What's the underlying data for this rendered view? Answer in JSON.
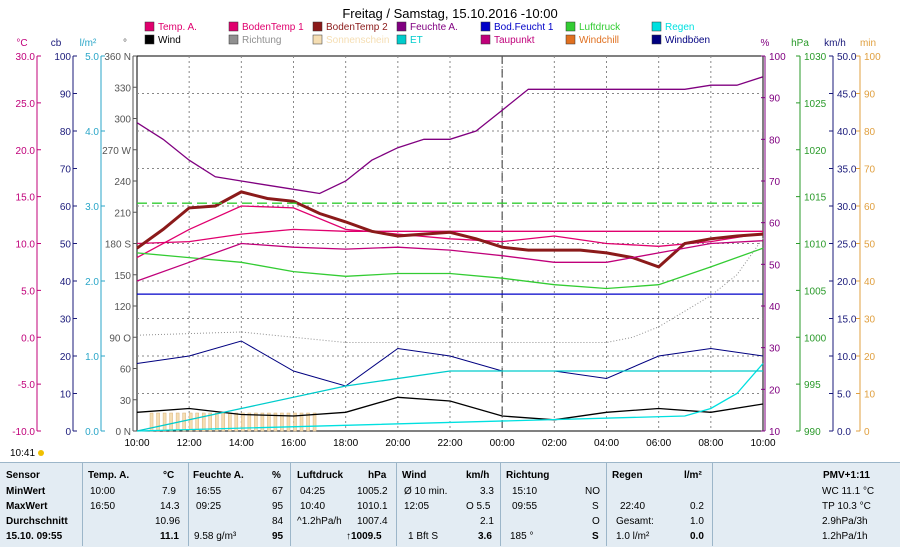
{
  "chart_data": {
    "type": "line",
    "title": "Freitag / Samstag, 15.10.2016  -10:00",
    "x_ticks": [
      "10:00",
      "12:00",
      "14:00",
      "16:00",
      "18:00",
      "20:00",
      "22:00",
      "00:00",
      "02:00",
      "04:00",
      "06:00",
      "08:00",
      "10:00"
    ],
    "left_axes": [
      {
        "unit": "°C",
        "color": "#c0007a",
        "ticks": [
          "30.0",
          "25.0",
          "20.0",
          "15.0",
          "10.0",
          "5.0",
          "0.0",
          "-5.0",
          "-10.0"
        ]
      },
      {
        "unit": "cb",
        "color": "#1a1a7a",
        "ticks": [
          "100",
          "90",
          "80",
          "70",
          "60",
          "50",
          "40",
          "30",
          "20",
          "10",
          "0"
        ]
      },
      {
        "unit": "l/m²",
        "color": "#2aa6c8",
        "ticks": [
          "5.0",
          "4.0",
          "3.0",
          "2.0",
          "1.0",
          "0.0"
        ]
      },
      {
        "unit": "°",
        "color": "#555555",
        "ticks": [
          "360 N",
          "330",
          "300",
          "270 W",
          "240",
          "210",
          "180 S",
          "150",
          "120",
          "90 O",
          "60",
          "30",
          "0 N"
        ]
      }
    ],
    "right_axes": [
      {
        "unit": "%",
        "color": "#800080",
        "ticks": [
          "100",
          "90",
          "80",
          "70",
          "60",
          "50",
          "40",
          "30",
          "20",
          "10"
        ]
      },
      {
        "unit": "hPa",
        "color": "#2a9a2a",
        "ticks": [
          "1030",
          "1025",
          "1020",
          "1015",
          "1010",
          "1005",
          "1000",
          "995",
          "990"
        ]
      },
      {
        "unit": "km/h",
        "color": "#1a1a7a",
        "ticks": [
          "50.0",
          "45.0",
          "40.0",
          "35.0",
          "30.0",
          "25.0",
          "20.0",
          "15.0",
          "10.0",
          "5.0",
          "0.0"
        ]
      },
      {
        "unit": "min",
        "color": "#e0a040",
        "ticks": [
          "100",
          "90",
          "80",
          "70",
          "60",
          "50",
          "40",
          "30",
          "20",
          "10",
          "0"
        ]
      }
    ],
    "legend": [
      {
        "name": "Temp. A.",
        "color": "#e0006e"
      },
      {
        "name": "BodenTemp 1",
        "color": "#e0006e"
      },
      {
        "name": "BodenTemp 2",
        "color": "#8b1a1a"
      },
      {
        "name": "Feuchte A.",
        "color": "#800080"
      },
      {
        "name": "Bod.Feucht 1",
        "color": "#0000c8"
      },
      {
        "name": "Luftdruck",
        "color": "#33cc33"
      },
      {
        "name": "Regen",
        "color": "#00e0e0"
      },
      {
        "name": "Wind",
        "color": "#000000"
      },
      {
        "name": "Richtung",
        "color": "#909090"
      },
      {
        "name": "Sonnenschein",
        "color": "#f5deb3"
      },
      {
        "name": "ET",
        "color": "#00cccc"
      },
      {
        "name": "Taupunkt",
        "color": "#c0007a"
      },
      {
        "name": "Windchill",
        "color": "#e07020"
      },
      {
        "name": "Windböen",
        "color": "#000080"
      }
    ],
    "series": [
      {
        "name": "Temp. A.",
        "unit": "°C",
        "x": [
          0,
          2,
          4,
          6,
          8,
          10,
          12,
          14,
          16,
          18,
          20,
          22,
          24
        ],
        "values": [
          8.5,
          11.5,
          14.0,
          13.8,
          11.5,
          11.0,
          10.5,
          10.2,
          10.8,
          10.0,
          9.7,
          10.2,
          11.1
        ]
      },
      {
        "name": "BodenTemp 1",
        "unit": "°C",
        "x": [
          0,
          2,
          4,
          6,
          8,
          10,
          12,
          14,
          16,
          18,
          20,
          22,
          24
        ],
        "values": [
          10.0,
          10.2,
          11.0,
          11.5,
          11.3,
          11.3,
          11.3,
          11.3,
          11.3,
          11.3,
          11.3,
          11.3,
          11.3
        ]
      },
      {
        "name": "BodenTemp 2",
        "unit": "°C",
        "x": [
          0,
          1,
          2,
          3,
          4,
          5,
          6,
          7,
          8,
          9,
          10,
          11,
          12,
          13,
          14,
          15,
          16,
          17,
          18,
          19,
          20,
          21,
          22,
          23,
          24
        ],
        "values": [
          9.5,
          11.5,
          13.8,
          14.0,
          15.5,
          14.8,
          14.5,
          13.2,
          12.3,
          11.3,
          10.8,
          11.0,
          11.2,
          10.5,
          9.6,
          9.3,
          9.3,
          9.3,
          9.0,
          8.5,
          7.5,
          10.0,
          10.5,
          10.8,
          11.0
        ]
      },
      {
        "name": "Feuchte A.",
        "unit": "%",
        "x": [
          0,
          1,
          2,
          3,
          4,
          5,
          6,
          7,
          8,
          9,
          10,
          11,
          12,
          13,
          14,
          15,
          16,
          17,
          18,
          19,
          20,
          21,
          22,
          23,
          24
        ],
        "values": [
          84,
          80,
          75,
          71,
          70,
          69,
          68,
          67,
          70,
          75,
          78,
          80,
          80,
          82,
          87,
          92,
          92,
          92,
          92,
          92,
          92,
          92,
          93,
          93,
          95
        ]
      },
      {
        "name": "Bod.Feucht 1",
        "unit": "cb",
        "x": [
          0,
          24
        ],
        "values": [
          36.5,
          36.5
        ]
      },
      {
        "name": "Luftdruck",
        "unit": "hPa",
        "x": [
          0,
          2,
          4,
          6,
          8,
          10,
          12,
          14,
          16,
          18,
          20,
          22,
          24
        ],
        "values": [
          1009,
          1008.5,
          1008,
          1007,
          1006.5,
          1006.8,
          1006.8,
          1006.3,
          1005.6,
          1005.2,
          1005.6,
          1007.5,
          1009.5
        ]
      },
      {
        "name": "Taupunkt",
        "unit": "°C",
        "x": [
          0,
          2,
          4,
          6,
          8,
          10,
          12,
          14,
          16,
          18,
          20,
          22,
          24
        ],
        "values": [
          6.0,
          8.0,
          10.0,
          9.6,
          9.4,
          9.6,
          9.3,
          8.7,
          8.0,
          8.0,
          9.0,
          10.0,
          10.3
        ]
      },
      {
        "name": "Richtung",
        "unit": "°",
        "x": [
          0,
          4,
          8,
          12,
          16,
          18,
          19,
          20,
          21,
          22,
          23,
          24
        ],
        "values": [
          92,
          95,
          85,
          85,
          85,
          85,
          90,
          100,
          115,
          130,
          150,
          185
        ]
      },
      {
        "name": "Wind",
        "unit": "km/h",
        "x": [
          0,
          2,
          4,
          6,
          8,
          10,
          12,
          14,
          16,
          18,
          20,
          22,
          24
        ],
        "values": [
          2.5,
          3.0,
          2.2,
          2.0,
          2.5,
          4.5,
          4.0,
          2.0,
          1.5,
          2.5,
          3.0,
          2.5,
          3.6
        ]
      },
      {
        "name": "Windböen",
        "unit": "km/h",
        "x": [
          0,
          2,
          4,
          6,
          8,
          10,
          12,
          14,
          16,
          18,
          20,
          22,
          24
        ],
        "values": [
          9,
          10,
          12,
          8,
          6,
          11,
          10,
          8,
          8,
          7,
          10,
          11,
          10
        ]
      },
      {
        "name": "Regen",
        "unit": "l/m²",
        "x": [
          0,
          21,
          22,
          23,
          24
        ],
        "values": [
          0.0,
          0.2,
          0.3,
          0.5,
          0.9
        ]
      },
      {
        "name": "ET",
        "unit": "l/m²",
        "x": [
          0,
          4,
          8,
          12,
          24
        ],
        "values": [
          0.0,
          0.3,
          0.6,
          0.8,
          0.8
        ]
      }
    ],
    "annotations": {
      "vertical_dashed_line": "00:00",
      "time_marker": "10:41"
    }
  },
  "summary_table": {
    "headers": {
      "sensor": "Sensor",
      "temp": "Temp. A.",
      "temp_unit": "°C",
      "feuchte": "Feuchte A.",
      "feuchte_unit": "%",
      "luftdruck": "Luftdruck",
      "luftdruck_unit": "hPa",
      "wind": "Wind",
      "wind_unit": "km/h",
      "richtung": "Richtung",
      "regen": "Regen",
      "regen_unit": "l/m²",
      "pmv": "PMV+1:11"
    },
    "min": {
      "label": "MinWert",
      "temp_time": "10:00",
      "temp": "7.9",
      "feuchte_time": "16:55",
      "feuchte": "67",
      "druck_time": "04:25",
      "druck": "1005.2",
      "wind_label": "Ø 10 min.",
      "wind": "3.3",
      "richtung_time": "15:10",
      "richtung": "NO",
      "extra": "WC 11.1 °C"
    },
    "max": {
      "label": "MaxWert",
      "temp_time": "16:50",
      "temp": "14.3",
      "feuchte_time": "09:25",
      "feuchte": "95",
      "druck_time": "10:40",
      "druck": "1010.1",
      "wind_time": "12:05",
      "wind": "O 5.5",
      "richtung_time": "09:55",
      "richtung": "S",
      "regen_time": "22:40",
      "regen": "0.2",
      "extra": "TP 10.3 °C"
    },
    "avg": {
      "label": "Durchschnitt",
      "temp": "10.96",
      "feuchte": "84",
      "druck_label": "^1.2hPa/h",
      "druck": "1007.4",
      "wind": "2.1",
      "richtung": "O",
      "regen_label": "Gesamt:",
      "regen": "1.0",
      "extra": "2.9hPa/3h"
    },
    "cur": {
      "label": "15.10. 09:55",
      "temp": "11.1",
      "feuchte_label": "9.58 g/m³",
      "feuchte": "95",
      "druck": "↑1009.5",
      "wind_label": "1 Bft S",
      "wind": "3.6",
      "richtung_label": "185 °",
      "richtung": "S",
      "regen_label": "1.0 l/m²",
      "regen": "0.0",
      "extra": "1.2hPa/1h"
    },
    "time_label": "10:41"
  }
}
